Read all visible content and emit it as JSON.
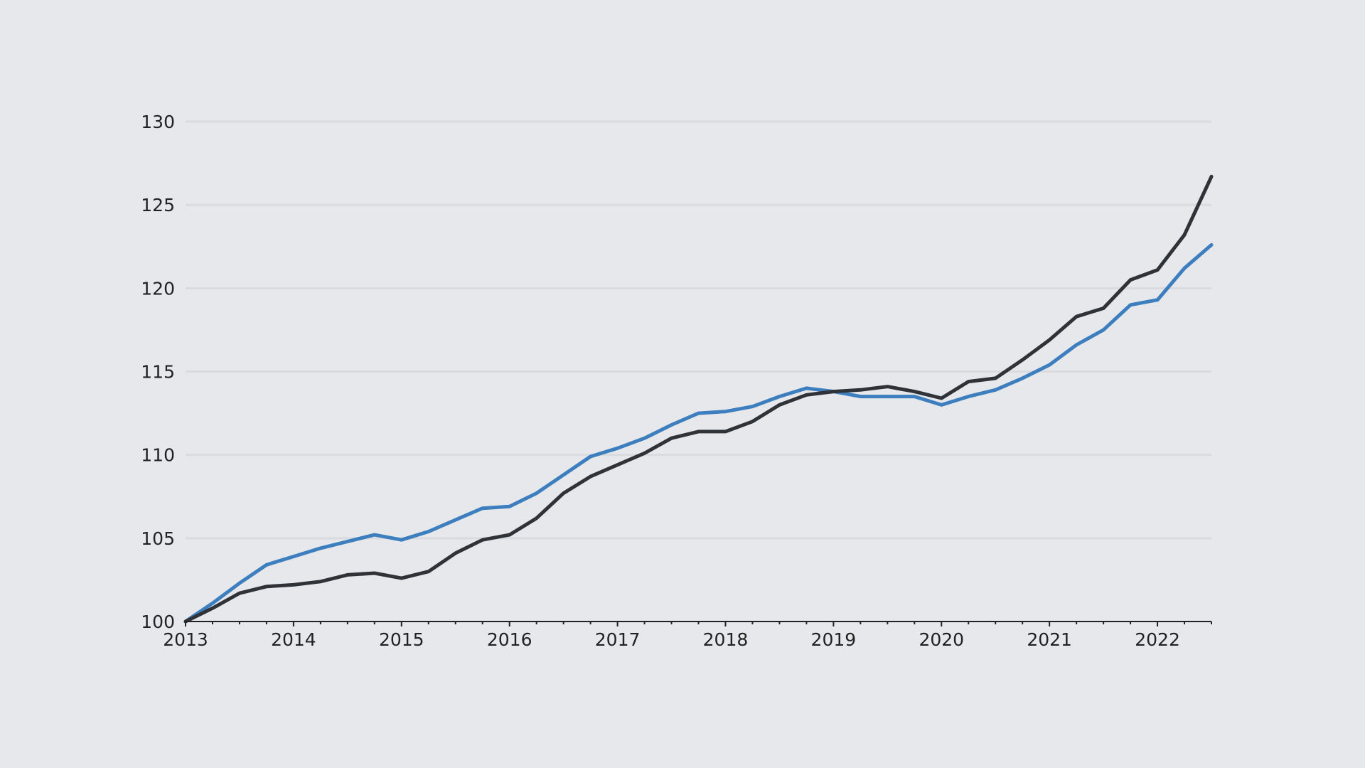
{
  "chart_data": {
    "type": "line",
    "title": "",
    "xlabel": "",
    "ylabel": "",
    "xlim": [
      2013.0,
      2022.5
    ],
    "ylim": [
      100,
      130
    ],
    "grid": true,
    "y_ticks": [
      100,
      105,
      110,
      115,
      120,
      125,
      130
    ],
    "x_ticks": [
      2013,
      2014,
      2015,
      2016,
      2017,
      2018,
      2019,
      2020,
      2021,
      2022
    ],
    "x": [
      2013.0,
      2013.25,
      2013.5,
      2013.75,
      2014.0,
      2014.25,
      2014.5,
      2014.75,
      2015.0,
      2015.25,
      2015.5,
      2015.75,
      2016.0,
      2016.25,
      2016.5,
      2016.75,
      2017.0,
      2017.25,
      2017.5,
      2017.75,
      2018.0,
      2018.25,
      2018.5,
      2018.75,
      2019.0,
      2019.25,
      2019.5,
      2019.75,
      2020.0,
      2020.25,
      2020.5,
      2020.75,
      2021.0,
      2021.25,
      2021.5,
      2021.75,
      2022.0,
      2022.25,
      2022.5
    ],
    "series": [
      {
        "color": "#3d7ebf",
        "values": [
          100.0,
          101.1,
          102.3,
          103.4,
          103.9,
          104.4,
          104.8,
          105.2,
          104.9,
          105.4,
          106.1,
          106.8,
          106.9,
          107.7,
          108.8,
          109.9,
          110.4,
          111.0,
          111.8,
          112.5,
          112.6,
          112.9,
          113.5,
          114.0,
          113.8,
          113.5,
          113.5,
          113.5,
          113.0,
          113.5,
          113.9,
          114.6,
          115.4,
          116.6,
          117.5,
          119.0,
          119.3,
          121.2,
          122.6
        ]
      },
      {
        "color": "#2f3236",
        "values": [
          100.0,
          100.8,
          101.7,
          102.1,
          102.2,
          102.4,
          102.8,
          102.9,
          102.6,
          103.0,
          104.1,
          104.9,
          105.2,
          106.2,
          107.7,
          108.7,
          109.4,
          110.1,
          111.0,
          111.4,
          111.4,
          112.0,
          113.0,
          113.6,
          113.8,
          113.9,
          114.1,
          113.8,
          113.4,
          114.4,
          114.6,
          115.7,
          116.9,
          118.3,
          118.8,
          120.5,
          121.1,
          123.2,
          126.7
        ]
      }
    ]
  }
}
